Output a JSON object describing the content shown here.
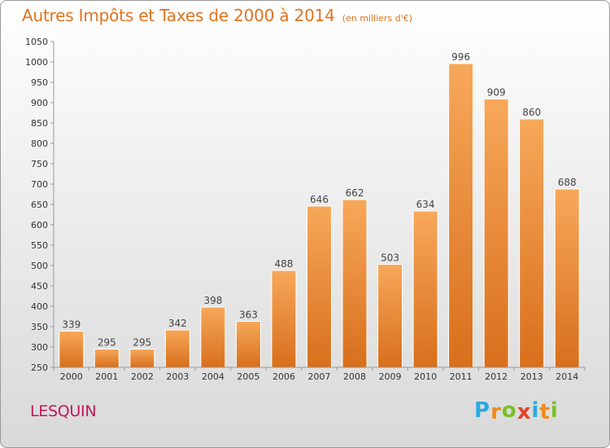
{
  "header": {
    "title": "Autres Impôts et Taxes de 2000 à 2014",
    "unit": "(en milliers d'€)"
  },
  "footer": {
    "commune": "LESQUIN",
    "brand": [
      "P",
      "r",
      "o",
      "x",
      "i",
      "t",
      "i"
    ]
  },
  "colors": {
    "title": "#e0731f",
    "commune": "#c2185b",
    "bar_top": "#f7a85a",
    "bar_bottom": "#d86f1c",
    "brand": [
      "#2aa9e0",
      "#f08c1c",
      "#7cbf2a",
      "#e8402a",
      "#2aa9e0",
      "#f08c1c",
      "#7cbf2a"
    ]
  },
  "chart_data": {
    "type": "bar",
    "categories": [
      "2000",
      "2001",
      "2002",
      "2003",
      "2004",
      "2005",
      "2006",
      "2007",
      "2008",
      "2009",
      "2010",
      "2011",
      "2012",
      "2013",
      "2014"
    ],
    "values": [
      339,
      295,
      295,
      342,
      398,
      363,
      488,
      646,
      662,
      503,
      634,
      996,
      909,
      860,
      688
    ],
    "title": "Autres Impôts et Taxes de 2000 à 2014",
    "subtitle": "(en milliers d'€)",
    "xlabel": "",
    "ylabel": "",
    "ylim": [
      250,
      1050
    ],
    "yticks": [
      250,
      300,
      350,
      400,
      450,
      500,
      550,
      600,
      650,
      700,
      750,
      800,
      850,
      900,
      950,
      1000,
      1050
    ],
    "grid": false,
    "data_labels": true
  }
}
